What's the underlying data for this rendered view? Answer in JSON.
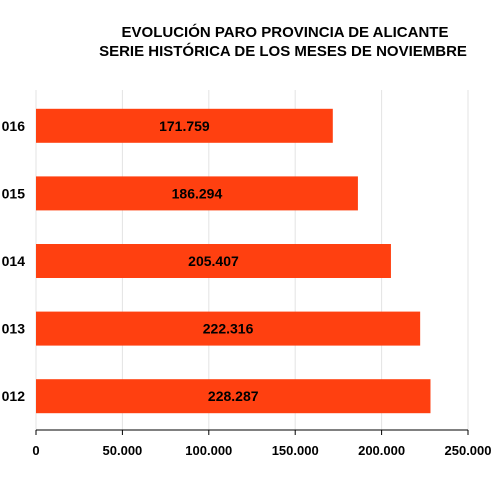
{
  "chart_data": {
    "type": "bar",
    "orientation": "horizontal",
    "title": "EVOLUCIÓN PARO PROVINCIA DE ALICANTE",
    "subtitle": "SERIE HISTÓRICA DE LOS MESES DE NOVIEMBRE",
    "categories": [
      "016",
      "015",
      "014",
      "013",
      "012"
    ],
    "values": [
      171759,
      186294,
      205407,
      222316,
      228287
    ],
    "data_labels": [
      "171.759",
      "186.294",
      "205.407",
      "222.316",
      "228.287"
    ],
    "xlim": [
      0,
      250000
    ],
    "x_ticks": [
      0,
      50000,
      100000,
      150000,
      200000,
      250000
    ],
    "x_tick_labels": [
      "0",
      "50.000",
      "100.000",
      "150.000",
      "200.000",
      "250.000"
    ],
    "xlabel": "",
    "ylabel": "",
    "grid": "vertical",
    "legend": "none",
    "bar_color": "#FF4010"
  }
}
